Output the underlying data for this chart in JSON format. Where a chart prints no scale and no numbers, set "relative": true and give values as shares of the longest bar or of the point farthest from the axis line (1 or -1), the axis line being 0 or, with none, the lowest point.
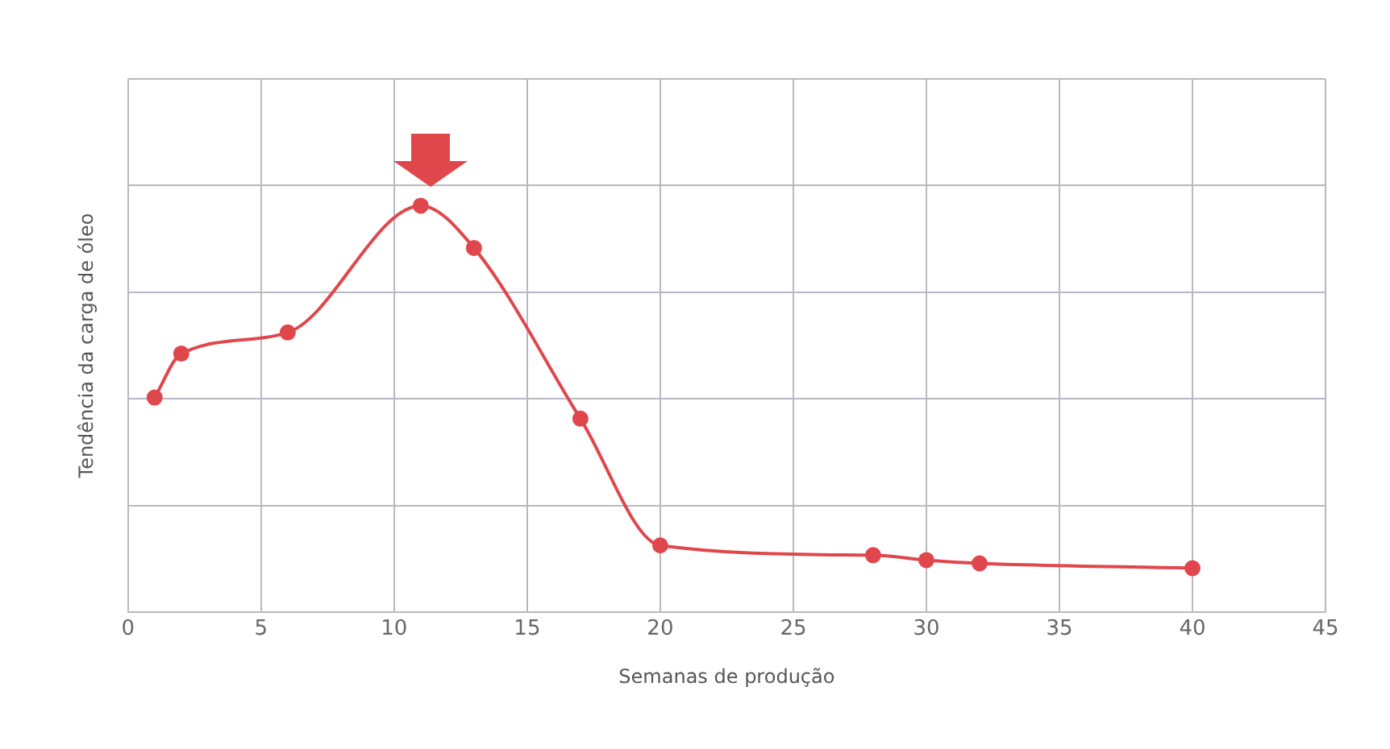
{
  "chart_data": {
    "type": "line",
    "xlabel": "Semanas de produção",
    "ylabel": "Tendência da carga de óleo",
    "relative": true,
    "x": [
      1,
      2,
      6,
      11,
      13,
      17,
      20,
      28,
      30,
      32,
      40
    ],
    "series": [
      {
        "color": "#e0474c",
        "values": [
          0.528,
          0.636,
          0.688,
          1,
          0.896,
          0.476,
          0.164,
          0.14,
          0.128,
          0.12,
          0.108
        ]
      }
    ],
    "xlim": [
      0,
      45
    ],
    "xticks": [
      0,
      5,
      10,
      15,
      20,
      25,
      30,
      35,
      40,
      45
    ],
    "grid": true,
    "legend": false,
    "marker": "circle",
    "line_style": "solid"
  }
}
